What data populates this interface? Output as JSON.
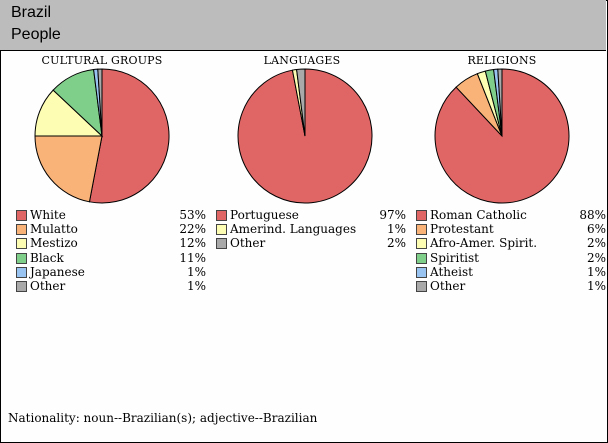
{
  "header": {
    "country": "Brazil",
    "topic": "People"
  },
  "chart_data": [
    {
      "type": "pie",
      "title": "CULTURAL GROUPS",
      "slices": [
        {
          "label": "White",
          "value": 53,
          "display": "53%",
          "color": "#e06666"
        },
        {
          "label": "Mulatto",
          "value": 22,
          "display": "22%",
          "color": "#f9b378"
        },
        {
          "label": "Mestizo",
          "value": 12,
          "display": "12%",
          "color": "#fdfdb3"
        },
        {
          "label": "Black",
          "value": 11,
          "display": "11%",
          "color": "#7fcf8a"
        },
        {
          "label": "Japanese",
          "value": 1,
          "display": "1%",
          "color": "#99c4f2"
        },
        {
          "label": "Other",
          "value": 1,
          "display": "1%",
          "color": "#a9a9a9"
        }
      ]
    },
    {
      "type": "pie",
      "title": "LANGUAGES",
      "slices": [
        {
          "label": "Portuguese",
          "value": 97,
          "display": "97%",
          "color": "#e06666"
        },
        {
          "label": "Amerind.  Languages",
          "value": 1,
          "display": "1%",
          "color": "#fdfdb3"
        },
        {
          "label": "Other",
          "value": 2,
          "display": "2%",
          "color": "#a9a9a9"
        }
      ]
    },
    {
      "type": "pie",
      "title": "RELIGIONS",
      "slices": [
        {
          "label": "Roman  Catholic",
          "value": 88,
          "display": "88%",
          "color": "#e06666"
        },
        {
          "label": "Protestant",
          "value": 6,
          "display": "6%",
          "color": "#f9b378"
        },
        {
          "label": "Afro-Amer.  Spirit.",
          "value": 2,
          "display": "2%",
          "color": "#fdfdb3"
        },
        {
          "label": "Spiritist",
          "value": 2,
          "display": "2%",
          "color": "#7fcf8a"
        },
        {
          "label": "Atheist",
          "value": 1,
          "display": "1%",
          "color": "#99c4f2"
        },
        {
          "label": "Other",
          "value": 1,
          "display": "1%",
          "color": "#a9a9a9"
        }
      ]
    }
  ],
  "footer": {
    "nationality": "Nationality:  noun--Brazilian(s);  adjective--Brazilian"
  }
}
